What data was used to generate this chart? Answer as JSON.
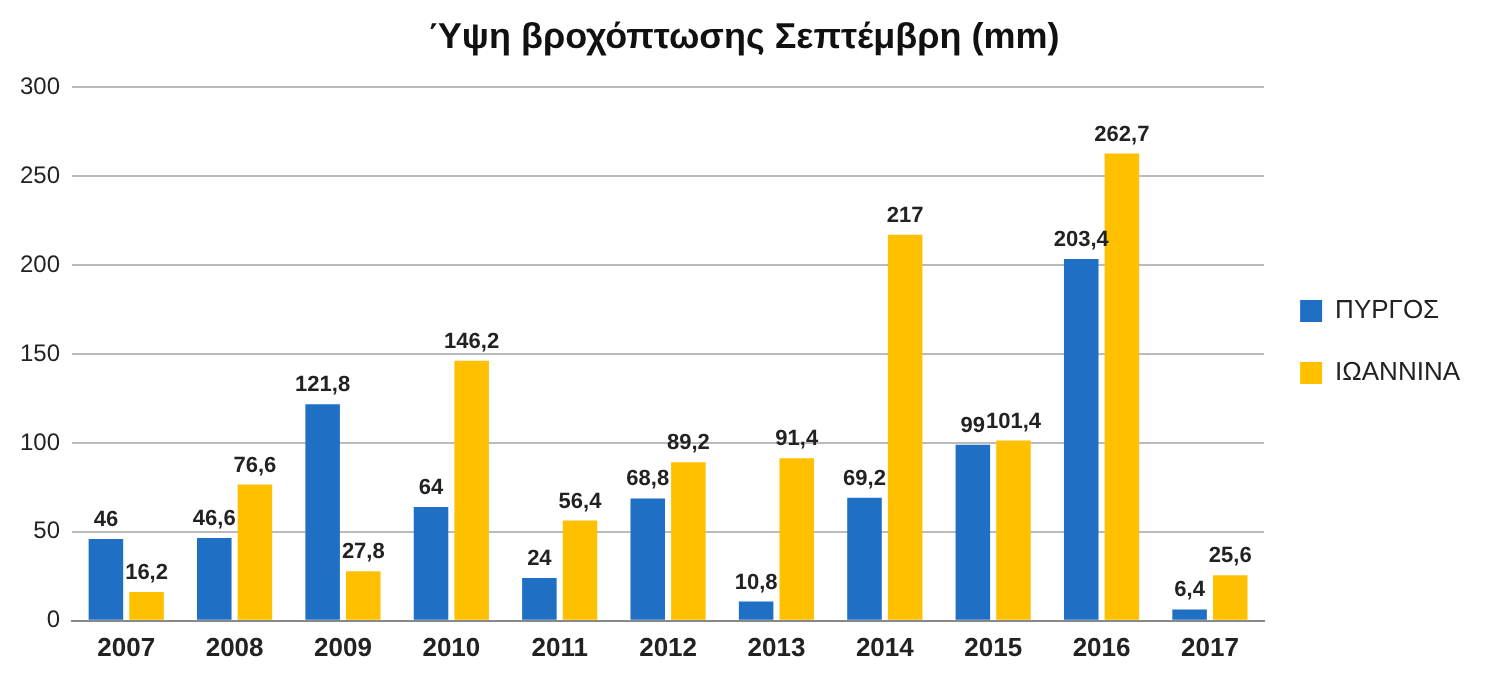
{
  "chart_data": {
    "type": "bar",
    "title": "Ύψη βροχόπτωσης Σεπτέμβρη (mm)",
    "categories": [
      "2007",
      "2008",
      "2009",
      "2010",
      "2011",
      "2012",
      "2013",
      "2014",
      "2015",
      "2016",
      "2017"
    ],
    "series": [
      {
        "name": "ΠΥΡΓΟΣ",
        "color": "#1f6fc5",
        "values": [
          46,
          46.6,
          121.8,
          64,
          24,
          68.8,
          10.8,
          69.2,
          99,
          203.4,
          6.4
        ],
        "value_labels": [
          "46",
          "46,6",
          "121,8",
          "64",
          "24",
          "68,8",
          "10,8",
          "69,2",
          "99",
          "203,4",
          "6,4"
        ]
      },
      {
        "name": "ΙΩΑΝΝΙΝΑ",
        "color": "#ffc000",
        "values": [
          16.2,
          76.6,
          27.8,
          146.2,
          56.4,
          89.2,
          91.4,
          217,
          101.4,
          262.7,
          25.6
        ],
        "value_labels": [
          "16,2",
          "76,6",
          "27,8",
          "146,2",
          "56,4",
          "89,2",
          "91,4",
          "217",
          "101,4",
          "262,7",
          "25,6"
        ]
      }
    ],
    "ylim": [
      0,
      300
    ],
    "yticks": [
      0,
      50,
      100,
      150,
      200,
      250,
      300
    ],
    "grid": "y",
    "legend": "right"
  }
}
